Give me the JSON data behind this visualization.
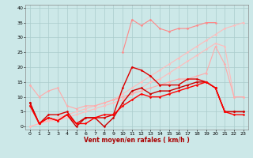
{
  "xlabel": "Vent moyen/en rafales ( km/h )",
  "xlim": [
    -0.5,
    23.5
  ],
  "ylim": [
    -1,
    41
  ],
  "yticks": [
    0,
    5,
    10,
    15,
    20,
    25,
    30,
    35,
    40
  ],
  "xticks": [
    0,
    1,
    2,
    3,
    4,
    5,
    6,
    7,
    8,
    9,
    10,
    11,
    12,
    13,
    14,
    15,
    16,
    17,
    18,
    19,
    20,
    21,
    22,
    23
  ],
  "bg_color": "#cce8e8",
  "grid_color": "#aacccc",
  "series": [
    {
      "x": [
        0,
        1,
        2,
        3,
        4,
        5,
        6,
        7,
        8,
        9,
        10,
        11,
        12,
        13,
        14,
        15,
        16,
        17,
        18,
        19,
        20,
        21,
        22,
        23
      ],
      "y": [
        0,
        1,
        2,
        3,
        4,
        5,
        6,
        7,
        8,
        9,
        11,
        13,
        15,
        17,
        19,
        21,
        23,
        25,
        27,
        29,
        31,
        33,
        34,
        35
      ],
      "color": "#ffbbbb",
      "marker": "D",
      "markersize": 1.5,
      "linewidth": 0.8
    },
    {
      "x": [
        0,
        1,
        2,
        3,
        4,
        5,
        6,
        7,
        8,
        9,
        10,
        11,
        12,
        13,
        14,
        15,
        16,
        17,
        18,
        19,
        20,
        21,
        22,
        23
      ],
      "y": [
        0,
        1,
        2,
        2,
        3,
        4,
        5,
        6,
        7,
        8,
        9,
        11,
        13,
        15,
        16,
        18,
        20,
        22,
        24,
        26,
        28,
        27,
        10,
        10
      ],
      "color": "#ffbbbb",
      "marker": "D",
      "markersize": 1.5,
      "linewidth": 0.8
    },
    {
      "x": [
        0,
        1,
        2,
        3,
        4,
        5,
        6,
        7,
        8,
        9,
        10,
        11,
        12,
        13,
        14,
        15,
        16,
        17,
        18,
        19,
        20,
        21,
        22,
        23
      ],
      "y": [
        14,
        10,
        12,
        13,
        7,
        6,
        7,
        7,
        8,
        9,
        10,
        11,
        12,
        13,
        14,
        15,
        16,
        16,
        17,
        18,
        27,
        21,
        10,
        10
      ],
      "color": "#ffaaaa",
      "marker": "D",
      "markersize": 1.5,
      "linewidth": 0.8
    },
    {
      "x": [
        10,
        11,
        12,
        13,
        14,
        15,
        16,
        17,
        18,
        19,
        20,
        21,
        22,
        23
      ],
      "y": [
        25,
        36,
        34,
        36,
        33,
        32,
        33,
        33,
        34,
        35,
        35,
        null,
        null,
        null
      ],
      "color": "#ff8888",
      "marker": "D",
      "markersize": 1.5,
      "linewidth": 0.8
    },
    {
      "x": [
        0,
        1,
        2,
        3,
        4,
        5,
        6,
        7,
        8,
        9,
        10,
        11,
        12,
        13,
        14,
        15,
        16,
        17,
        18,
        19,
        20,
        21,
        22,
        23
      ],
      "y": [
        8,
        1,
        4,
        4,
        5,
        1,
        3,
        3,
        3,
        4,
        13,
        20,
        19,
        17,
        14,
        14,
        14,
        16,
        16,
        15,
        13,
        5,
        5,
        5
      ],
      "color": "#dd0000",
      "marker": "D",
      "markersize": 1.5,
      "linewidth": 1.0
    },
    {
      "x": [
        0,
        1,
        2,
        3,
        4,
        5,
        6,
        7,
        8,
        9,
        10,
        11,
        12,
        13,
        14,
        15,
        16,
        17,
        18,
        19,
        20,
        21,
        22,
        23
      ],
      "y": [
        8,
        1,
        3,
        2,
        4,
        0,
        3,
        3,
        0,
        3,
        8,
        12,
        13,
        11,
        12,
        12,
        13,
        14,
        15,
        15,
        13,
        5,
        5,
        5
      ],
      "color": "#cc0000",
      "marker": "D",
      "markersize": 1.5,
      "linewidth": 1.0
    },
    {
      "x": [
        0,
        1,
        2,
        3,
        4,
        5,
        6,
        7,
        8,
        9,
        10,
        11,
        12,
        13,
        14,
        15,
        16,
        17,
        18,
        19,
        20,
        21,
        22,
        23
      ],
      "y": [
        7,
        1,
        3,
        2,
        4,
        1,
        1,
        3,
        4,
        4,
        7,
        9,
        11,
        10,
        10,
        11,
        12,
        13,
        14,
        15,
        13,
        5,
        4,
        4
      ],
      "color": "#ff0000",
      "marker": "D",
      "markersize": 1.5,
      "linewidth": 1.0
    }
  ]
}
